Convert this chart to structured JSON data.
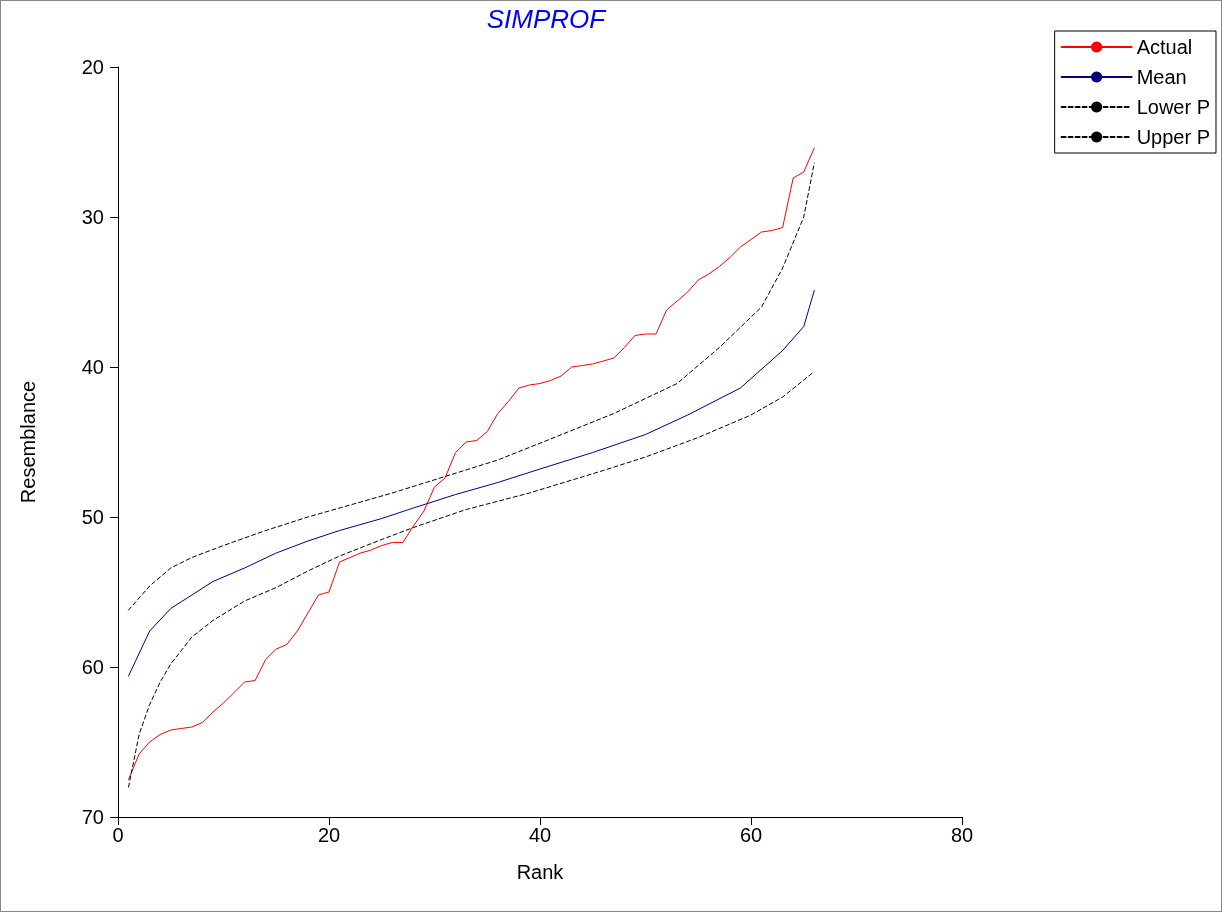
{
  "chart_data": {
    "type": "line",
    "title": "SIMPROF",
    "xlabel": "Rank",
    "ylabel": "Resemblance",
    "xlim": [
      0,
      80
    ],
    "xticks": [
      0,
      20,
      40,
      60,
      80
    ],
    "ylim": [
      70,
      20
    ],
    "yticks": [
      20,
      30,
      40,
      50,
      60,
      70
    ],
    "grid": false,
    "legend": "top right",
    "marker": "none",
    "series": [
      {
        "name": "Actual",
        "color": "#ff0000",
        "line_style": "solid",
        "x": [
          1,
          2,
          3,
          4,
          5,
          6,
          7,
          8,
          9,
          10,
          11,
          12,
          13,
          14,
          15,
          16,
          17,
          18,
          19,
          20,
          21,
          22,
          23,
          24,
          25,
          26,
          27,
          28,
          29,
          30,
          31,
          32,
          33,
          34,
          35,
          36,
          37,
          38,
          39,
          40,
          41,
          42,
          43,
          44,
          45,
          46,
          47,
          48,
          49,
          50,
          51,
          52,
          53,
          54,
          55,
          56,
          57,
          58,
          59,
          60,
          61,
          62,
          63,
          64,
          65,
          66
        ],
        "values": [
          67.5,
          65.8,
          65.0,
          64.5,
          64.2,
          64.1,
          64.0,
          63.7,
          63.0,
          62.4,
          61.7,
          61.0,
          60.9,
          59.5,
          58.8,
          58.5,
          57.6,
          56.4,
          55.2,
          55.0,
          53.0,
          52.7,
          52.4,
          52.2,
          51.9,
          51.7,
          51.7,
          50.6,
          49.6,
          48.0,
          47.4,
          45.7,
          45.0,
          44.9,
          44.3,
          43.1,
          42.3,
          41.4,
          41.2,
          41.1,
          40.9,
          40.6,
          40.0,
          39.9,
          39.8,
          39.6,
          39.4,
          38.7,
          37.9,
          37.8,
          37.8,
          36.2,
          35.6,
          35.0,
          34.2,
          33.8,
          33.3,
          32.7,
          32.0,
          31.5,
          31.0,
          30.9,
          30.7,
          27.4,
          27.0,
          25.4
        ]
      },
      {
        "name": "Mean",
        "color": "#000080",
        "line_style": "solid",
        "x": [
          1,
          3,
          5,
          7,
          9,
          12,
          15,
          18,
          21,
          25,
          28,
          32,
          36,
          40,
          45,
          50,
          54,
          59,
          63,
          65,
          66
        ],
        "values": [
          60.6,
          57.6,
          56.1,
          55.2,
          54.3,
          53.4,
          52.4,
          51.6,
          50.9,
          50.1,
          49.4,
          48.5,
          47.7,
          46.8,
          45.7,
          44.5,
          43.2,
          41.4,
          38.9,
          37.3,
          34.9
        ]
      },
      {
        "name": "Lower P",
        "color": "#000000",
        "line_style": "dashed",
        "x": [
          1,
          3,
          5,
          7,
          10,
          14,
          18,
          23,
          26,
          31,
          36,
          41,
          47,
          50,
          53,
          57,
          61,
          63,
          65,
          66
        ],
        "values": [
          56.2,
          54.6,
          53.4,
          52.7,
          51.9,
          50.9,
          50.0,
          49.0,
          48.4,
          47.3,
          46.2,
          44.8,
          43.1,
          42.1,
          41.1,
          38.7,
          36.0,
          33.4,
          30.0,
          26.4
        ]
      },
      {
        "name": "Upper P",
        "color": "#000000",
        "line_style": "dashed",
        "x": [
          1,
          2,
          3,
          4,
          5,
          7,
          9,
          12,
          15,
          18,
          21,
          25,
          28,
          33,
          39,
          46,
          50,
          55,
          60,
          63,
          66
        ],
        "values": [
          68.0,
          64.5,
          62.5,
          61.0,
          59.8,
          58.0,
          56.9,
          55.6,
          54.7,
          53.6,
          52.6,
          51.5,
          50.7,
          49.5,
          48.4,
          46.9,
          46.0,
          44.7,
          43.2,
          42.0,
          40.3
        ]
      }
    ]
  }
}
